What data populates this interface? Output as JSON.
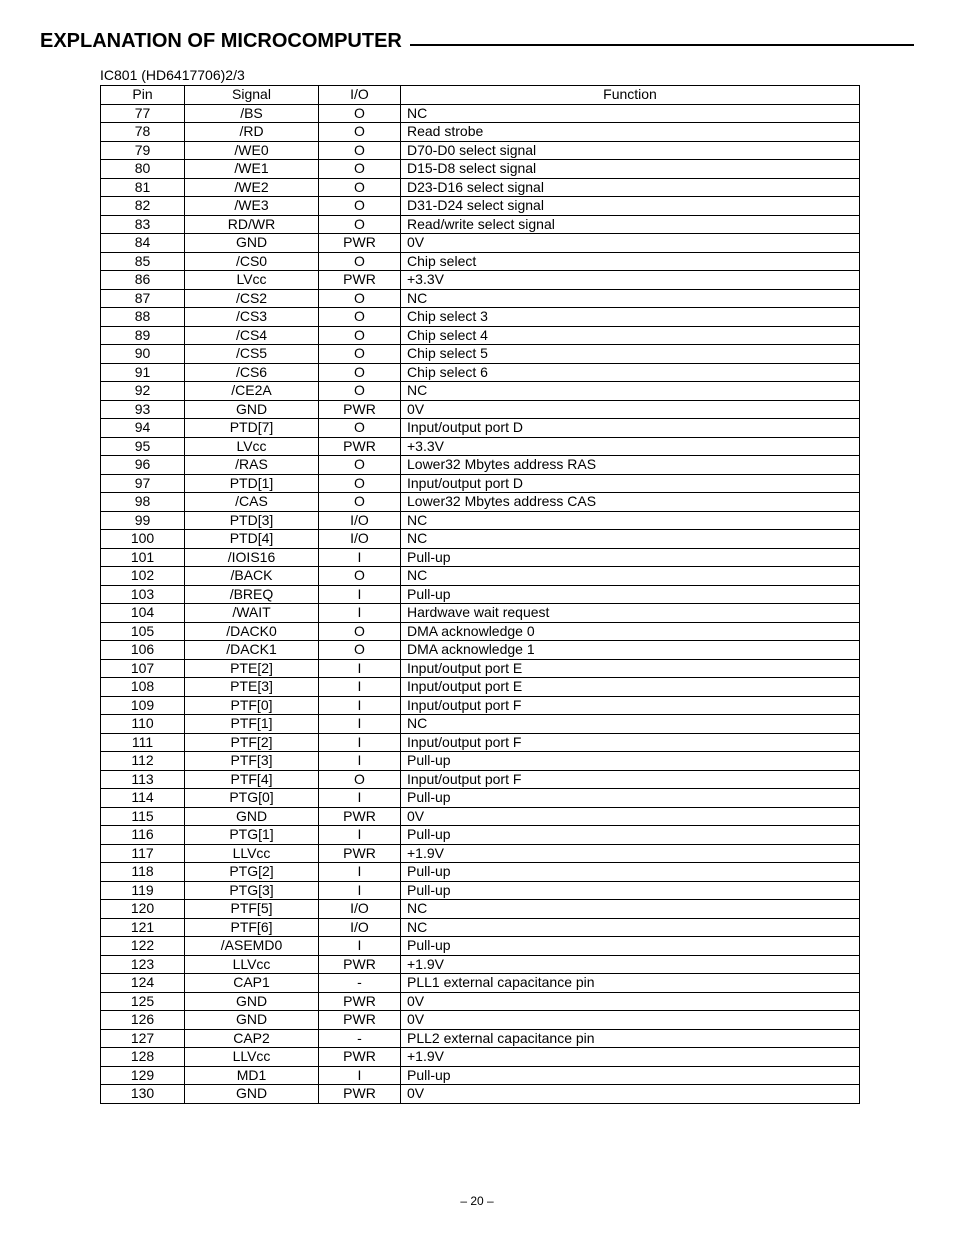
{
  "title": "EXPLANATION OF MICROCOMPUTER",
  "subcaption": "IC801 (HD6417706)2/3",
  "page_number": "– 20 –",
  "table": {
    "headers": {
      "pin": "Pin",
      "signal": "Signal",
      "io": "I/O",
      "function": "Function"
    },
    "col_align": {
      "pin": "center",
      "signal": "center",
      "io": "center",
      "function": "left"
    },
    "rows": [
      {
        "pin": "77",
        "signal": "/BS",
        "io": "O",
        "function": "NC"
      },
      {
        "pin": "78",
        "signal": "/RD",
        "io": "O",
        "function": "Read strobe"
      },
      {
        "pin": "79",
        "signal": "/WE0",
        "io": "O",
        "function": "D70-D0 select signal"
      },
      {
        "pin": "80",
        "signal": "/WE1",
        "io": "O",
        "function": "D15-D8 select signal"
      },
      {
        "pin": "81",
        "signal": "/WE2",
        "io": "O",
        "function": "D23-D16 select signal"
      },
      {
        "pin": "82",
        "signal": "/WE3",
        "io": "O",
        "function": "D31-D24 select signal"
      },
      {
        "pin": "83",
        "signal": "RD/WR",
        "io": "O",
        "function": "Read/write select signal"
      },
      {
        "pin": "84",
        "signal": "GND",
        "io": "PWR",
        "function": "0V"
      },
      {
        "pin": "85",
        "signal": "/CS0",
        "io": "O",
        "function": "Chip select"
      },
      {
        "pin": "86",
        "signal": "LVcc",
        "io": "PWR",
        "function": "+3.3V"
      },
      {
        "pin": "87",
        "signal": "/CS2",
        "io": "O",
        "function": "NC"
      },
      {
        "pin": "88",
        "signal": "/CS3",
        "io": "O",
        "function": "Chip select 3"
      },
      {
        "pin": "89",
        "signal": "/CS4",
        "io": "O",
        "function": "Chip select 4"
      },
      {
        "pin": "90",
        "signal": "/CS5",
        "io": "O",
        "function": "Chip select 5"
      },
      {
        "pin": "91",
        "signal": "/CS6",
        "io": "O",
        "function": "Chip select 6"
      },
      {
        "pin": "92",
        "signal": "/CE2A",
        "io": "O",
        "function": "NC"
      },
      {
        "pin": "93",
        "signal": "GND",
        "io": "PWR",
        "function": "0V"
      },
      {
        "pin": "94",
        "signal": "PTD[7]",
        "io": "O",
        "function": "Input/output port D"
      },
      {
        "pin": "95",
        "signal": "LVcc",
        "io": "PWR",
        "function": "+3.3V"
      },
      {
        "pin": "96",
        "signal": "/RAS",
        "io": "O",
        "function": "Lower32 Mbytes address RAS"
      },
      {
        "pin": "97",
        "signal": "PTD[1]",
        "io": "O",
        "function": "Input/output port D"
      },
      {
        "pin": "98",
        "signal": "/CAS",
        "io": "O",
        "function": "Lower32 Mbytes address CAS"
      },
      {
        "pin": "99",
        "signal": "PTD[3]",
        "io": "I/O",
        "function": "NC"
      },
      {
        "pin": "100",
        "signal": "PTD[4]",
        "io": "I/O",
        "function": "NC"
      },
      {
        "pin": "101",
        "signal": "/IOIS16",
        "io": "I",
        "function": "Pull-up"
      },
      {
        "pin": "102",
        "signal": "/BACK",
        "io": "O",
        "function": "NC"
      },
      {
        "pin": "103",
        "signal": "/BREQ",
        "io": "I",
        "function": "Pull-up"
      },
      {
        "pin": "104",
        "signal": "/WAIT",
        "io": "I",
        "function": "Hardwave wait request"
      },
      {
        "pin": "105",
        "signal": "/DACK0",
        "io": "O",
        "function": "DMA acknowledge 0"
      },
      {
        "pin": "106",
        "signal": "/DACK1",
        "io": "O",
        "function": "DMA acknowledge 1"
      },
      {
        "pin": "107",
        "signal": "PTE[2]",
        "io": "I",
        "function": "Input/output port E"
      },
      {
        "pin": "108",
        "signal": "PTE[3]",
        "io": "I",
        "function": "Input/output port E"
      },
      {
        "pin": "109",
        "signal": "PTF[0]",
        "io": "I",
        "function": "Input/output port F"
      },
      {
        "pin": "110",
        "signal": "PTF[1]",
        "io": "I",
        "function": "NC"
      },
      {
        "pin": "111",
        "signal": "PTF[2]",
        "io": "I",
        "function": "Input/output port F"
      },
      {
        "pin": "112",
        "signal": "PTF[3]",
        "io": "I",
        "function": "Pull-up"
      },
      {
        "pin": "113",
        "signal": "PTF[4]",
        "io": "O",
        "function": "Input/output port F"
      },
      {
        "pin": "114",
        "signal": "PTG[0]",
        "io": "I",
        "function": "Pull-up"
      },
      {
        "pin": "115",
        "signal": "GND",
        "io": "PWR",
        "function": "0V"
      },
      {
        "pin": "116",
        "signal": "PTG[1]",
        "io": "I",
        "function": "Pull-up"
      },
      {
        "pin": "117",
        "signal": "LLVcc",
        "io": "PWR",
        "function": "+1.9V"
      },
      {
        "pin": "118",
        "signal": "PTG[2]",
        "io": "I",
        "function": "Pull-up"
      },
      {
        "pin": "119",
        "signal": "PTG[3]",
        "io": "I",
        "function": "Pull-up"
      },
      {
        "pin": "120",
        "signal": "PTF[5]",
        "io": "I/O",
        "function": "NC"
      },
      {
        "pin": "121",
        "signal": "PTF[6]",
        "io": "I/O",
        "function": "NC"
      },
      {
        "pin": "122",
        "signal": "/ASEMD0",
        "io": "I",
        "function": "Pull-up"
      },
      {
        "pin": "123",
        "signal": "LLVcc",
        "io": "PWR",
        "function": "+1.9V"
      },
      {
        "pin": "124",
        "signal": "CAP1",
        "io": "-",
        "function": "PLL1 external capacitance pin"
      },
      {
        "pin": "125",
        "signal": "GND",
        "io": "PWR",
        "function": "0V"
      },
      {
        "pin": "126",
        "signal": "GND",
        "io": "PWR",
        "function": "0V"
      },
      {
        "pin": "127",
        "signal": "CAP2",
        "io": "-",
        "function": "PLL2 external capacitance pin"
      },
      {
        "pin": "128",
        "signal": "LLVcc",
        "io": "PWR",
        "function": "+1.9V"
      },
      {
        "pin": "129",
        "signal": "MD1",
        "io": "I",
        "function": "Pull-up"
      },
      {
        "pin": "130",
        "signal": "GND",
        "io": "PWR",
        "function": "0V"
      }
    ]
  }
}
